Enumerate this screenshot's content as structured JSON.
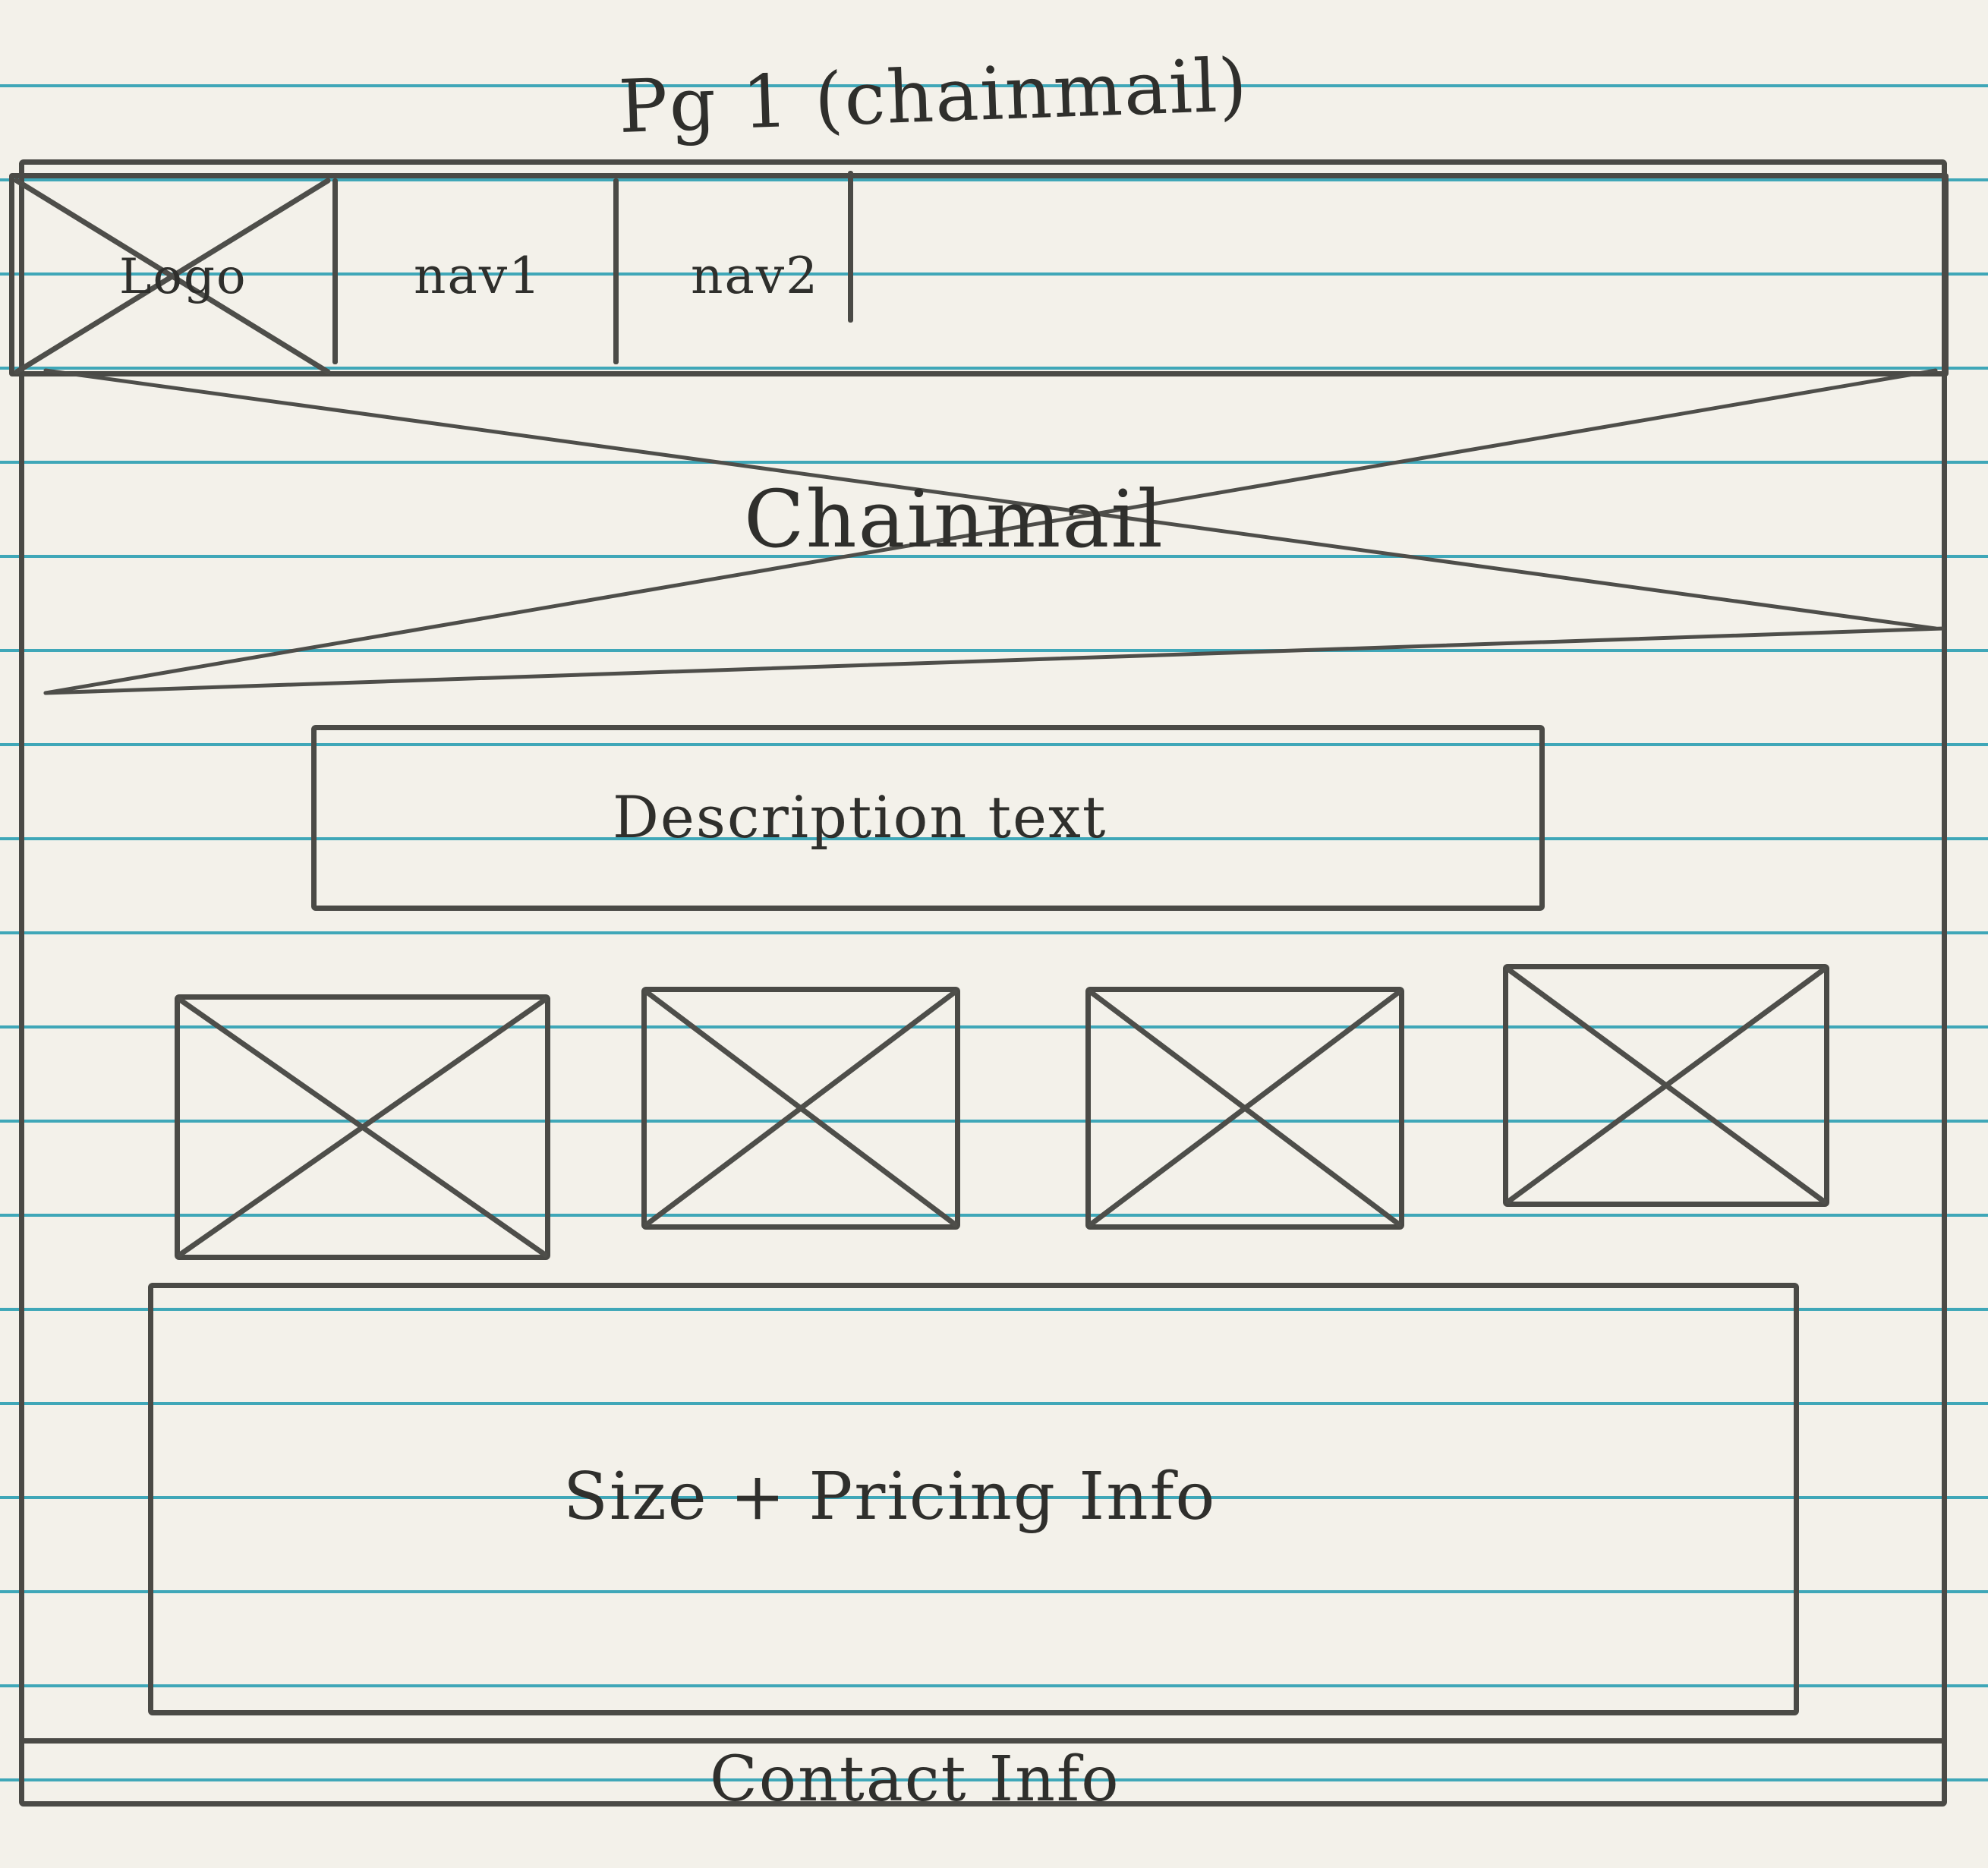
{
  "page_title": "Pg 1 (chainmail)",
  "header": {
    "logo_label": "Logo",
    "nav": [
      {
        "label": "nav1"
      },
      {
        "label": "nav2"
      }
    ]
  },
  "hero": {
    "label": "Chainmail"
  },
  "description": {
    "label": "Description text"
  },
  "gallery": {
    "count": 4,
    "icon": "image-placeholder-icon"
  },
  "pricing": {
    "label": "Size + Pricing Info"
  },
  "footer": {
    "label": "Contact Info"
  }
}
